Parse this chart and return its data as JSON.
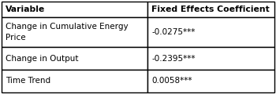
{
  "col_headers": [
    "Variable",
    "Fixed Effects Coefficient"
  ],
  "rows": [
    [
      "Change in Cumulative Energy\nPrice",
      "-0.0275***"
    ],
    [
      "Change in Output",
      "-0.2395***"
    ],
    [
      "Time Trend",
      "0.0058***"
    ]
  ],
  "col_split": 0.535,
  "border_color": "#000000",
  "bg_color": "#ffffff",
  "font_size": 7.5,
  "header_font_size": 7.8,
  "figsize": [
    3.5,
    1.2
  ],
  "dpi": 100,
  "lw": 1.0
}
